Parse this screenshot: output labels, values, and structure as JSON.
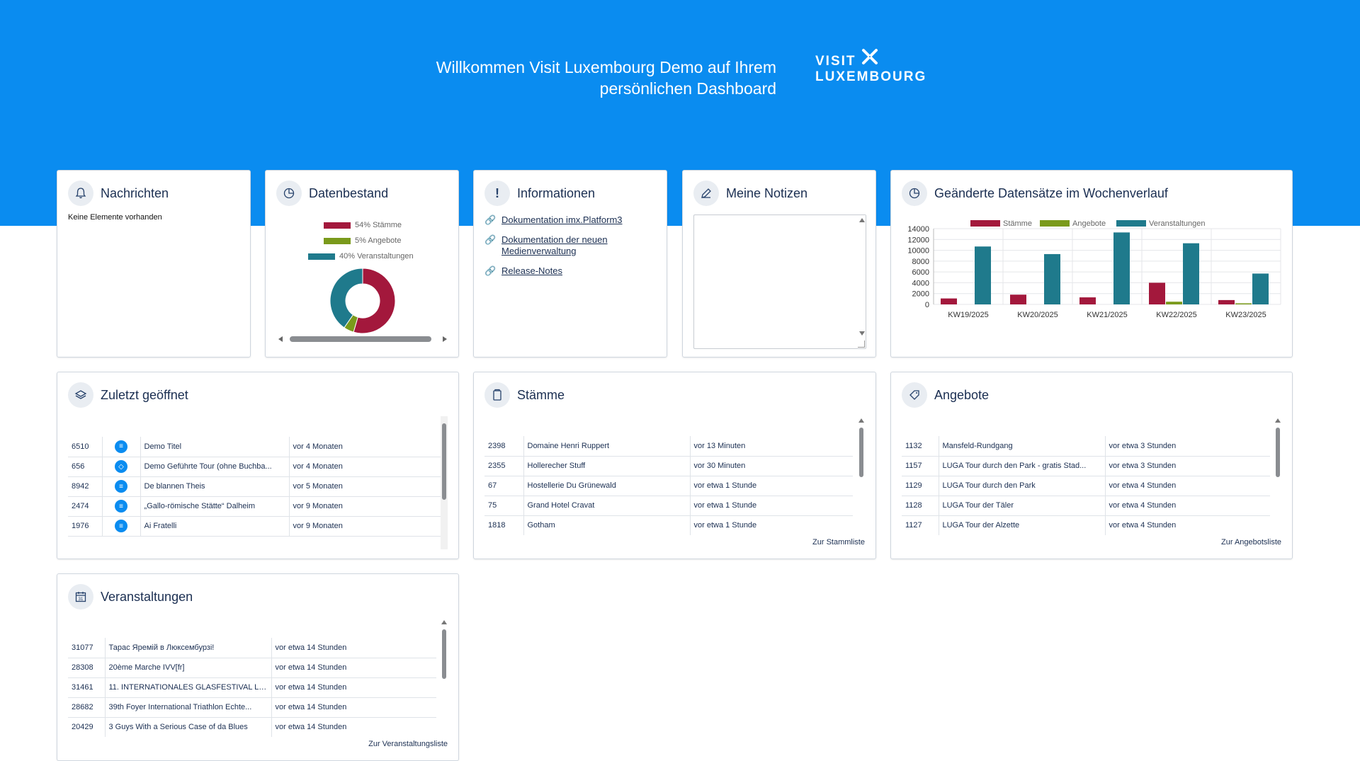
{
  "header": {
    "welcome_line1": "Willkommen Visit Luxembourg Demo auf Ihrem",
    "welcome_line2": "persönlichen Dashboard",
    "logo_line1": "VISIT",
    "logo_line2": "LUXEMBOURG"
  },
  "nachrichten": {
    "title": "Nachrichten",
    "empty": "Keine Elemente vorhanden"
  },
  "datenbestand": {
    "title": "Datenbestand",
    "legend": [
      {
        "label": "54% Stämme",
        "color": "#a3183c"
      },
      {
        "label": "5% Angebote",
        "color": "#7a9a1b"
      },
      {
        "label": "40% Veranstaltungen",
        "color": "#1f7a8c"
      }
    ],
    "chart_data": {
      "type": "pie",
      "categories": [
        "Stämme",
        "Angebote",
        "Veranstaltungen"
      ],
      "values": [
        54,
        5,
        40
      ]
    }
  },
  "informationen": {
    "title": "Informationen",
    "links": [
      "Dokumentation imx.Platform3",
      "Dokumentation der neuen Medienverwaltung",
      "Release-Notes"
    ]
  },
  "notizen": {
    "title": "Meine Notizen"
  },
  "wochenverlauf": {
    "title": "Geänderte Datensätze im Wochenverlauf",
    "chart_data": {
      "type": "bar",
      "categories": [
        "KW19/2025",
        "KW20/2025",
        "KW21/2025",
        "KW22/2025",
        "KW23/2025"
      ],
      "series": [
        {
          "name": "Stämme",
          "color": "#a3183c",
          "values": [
            1100,
            1800,
            1300,
            4000,
            800
          ]
        },
        {
          "name": "Angebote",
          "color": "#7a9a1b",
          "values": [
            0,
            0,
            0,
            500,
            200
          ]
        },
        {
          "name": "Veranstaltungen",
          "color": "#1f7a8c",
          "values": [
            10700,
            9300,
            13300,
            11300,
            5700
          ]
        }
      ],
      "yticks": [
        "14000",
        "12000",
        "10000",
        "8000",
        "6000",
        "4000",
        "2000",
        "0"
      ],
      "ylim": [
        0,
        14000
      ]
    }
  },
  "zuletzt": {
    "title": "Zuletzt geöffnet",
    "rows": [
      {
        "id": "6510",
        "name": "Demo Titel",
        "time": "vor 4 Monaten"
      },
      {
        "id": "656",
        "name": "Demo Geführte Tour (ohne Buchba...",
        "time": "vor 4 Monaten"
      },
      {
        "id": "8942",
        "name": "De blannen Theis",
        "time": "vor 5 Monaten"
      },
      {
        "id": "2474",
        "name": "„Gallo-römische Stätte“ Dalheim",
        "time": "vor 9 Monaten"
      },
      {
        "id": "1976",
        "name": "Ai Fratelli",
        "time": "vor 9 Monaten"
      }
    ]
  },
  "staemme": {
    "title": "Stämme",
    "rows": [
      {
        "id": "2398",
        "name": "Domaine Henri Ruppert",
        "time": "vor 13 Minuten"
      },
      {
        "id": "2355",
        "name": "Hollerecher Stuff",
        "time": "vor 30 Minuten"
      },
      {
        "id": "67",
        "name": "Hostellerie Du Grünewald",
        "time": "vor etwa 1 Stunde"
      },
      {
        "id": "75",
        "name": "Grand Hotel Cravat",
        "time": "vor etwa 1 Stunde"
      },
      {
        "id": "1818",
        "name": "Gotham",
        "time": "vor etwa 1 Stunde"
      }
    ],
    "footer": "Zur Stammliste"
  },
  "angebote": {
    "title": "Angebote",
    "rows": [
      {
        "id": "1132",
        "name": "Mansfeld-Rundgang",
        "time": "vor etwa 3 Stunden"
      },
      {
        "id": "1157",
        "name": "LUGA Tour durch den Park - gratis Stad...",
        "time": "vor etwa 3 Stunden"
      },
      {
        "id": "1129",
        "name": "LUGA Tour durch den Park",
        "time": "vor etwa 4 Stunden"
      },
      {
        "id": "1128",
        "name": "LUGA Tour der Täler",
        "time": "vor etwa 4 Stunden"
      },
      {
        "id": "1127",
        "name": "LUGA Tour der Alzette",
        "time": "vor etwa 4 Stunden"
      }
    ],
    "footer": "Zur Angebotsliste"
  },
  "veranstaltungen": {
    "title": "Veranstaltungen",
    "rows": [
      {
        "id": "31077",
        "name": "Тарас Яремій в Люксембурзі!",
        "time": "vor etwa 14 Stunden"
      },
      {
        "id": "28308",
        "name": "20ème Marche IVV[fr]",
        "time": "vor etwa 14 Stunden"
      },
      {
        "id": "31461",
        "name": "11. INTERNATIONALES GLASFESTIVAL LU...",
        "time": "vor etwa 14 Stunden"
      },
      {
        "id": "28682",
        "name": "39th Foyer International Triathlon Echte...",
        "time": "vor etwa 14 Stunden"
      },
      {
        "id": "20429",
        "name": "3 Guys With a Serious Case of da Blues",
        "time": "vor etwa 14 Stunden"
      }
    ],
    "footer": "Zur Veranstaltungsliste"
  }
}
